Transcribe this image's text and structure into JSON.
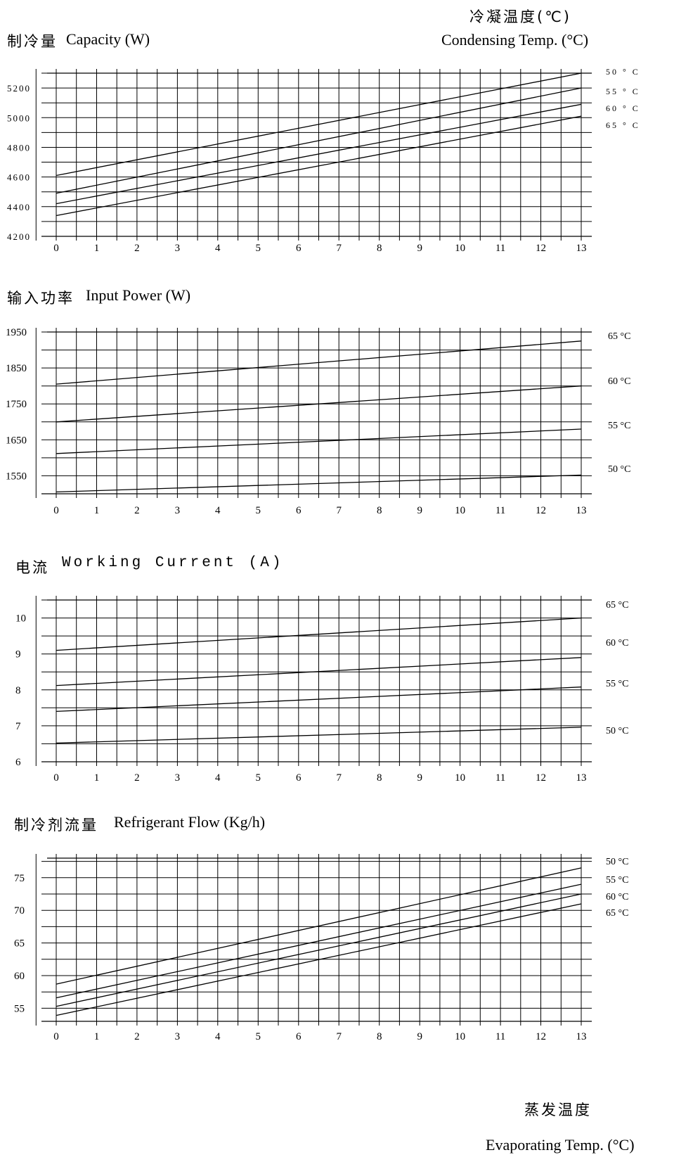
{
  "header": {
    "condensing_cn": "冷凝温度(℃)",
    "condensing_en": "Condensing Temp. (°C)"
  },
  "footer": {
    "evaporating_cn": "蒸发温度",
    "evaporating_en": "Evaporating Temp. (°C)"
  },
  "chart_data": [
    {
      "type": "line",
      "title_cn": "制冷量",
      "title_en": "Capacity  (W)",
      "x": [
        0,
        13
      ],
      "xlim": [
        0,
        13
      ],
      "ylim": [
        4200,
        5300
      ],
      "yticks": [
        4200,
        4400,
        4600,
        4800,
        5000,
        5200
      ],
      "grid": true,
      "series": [
        {
          "name": "50 ° C",
          "values": [
            4610,
            5300
          ]
        },
        {
          "name": "55 ° C",
          "values": [
            4490,
            5200
          ]
        },
        {
          "name": "60 ° C",
          "values": [
            4420,
            5090
          ]
        },
        {
          "name": "65 ° C",
          "values": [
            4340,
            5010
          ]
        }
      ]
    },
    {
      "type": "line",
      "title_cn": "输入功率",
      "title_en": "Input Power  (W)",
      "x": [
        0,
        13
      ],
      "xlim": [
        0,
        13
      ],
      "ylim": [
        1500,
        1950
      ],
      "yticks": [
        1550,
        1650,
        1750,
        1850,
        1950
      ],
      "grid": true,
      "series": [
        {
          "name": "65 °C",
          "values": [
            1805,
            1925
          ]
        },
        {
          "name": "60 °C",
          "values": [
            1700,
            1800
          ]
        },
        {
          "name": "55 °C",
          "values": [
            1612,
            1680
          ]
        },
        {
          "name": "50 °C",
          "values": [
            1505,
            1552
          ]
        }
      ]
    },
    {
      "type": "line",
      "title_cn": "电流",
      "title_en": "Working Current  (A)",
      "x": [
        0,
        13
      ],
      "xlim": [
        0,
        13
      ],
      "ylim": [
        6,
        10.5
      ],
      "yticks": [
        6,
        7,
        8,
        9,
        10
      ],
      "grid": true,
      "series": [
        {
          "name": "65 °C",
          "values": [
            9.1,
            10.0
          ]
        },
        {
          "name": "60 °C",
          "values": [
            8.12,
            8.9
          ]
        },
        {
          "name": "55 °C",
          "values": [
            7.4,
            8.08
          ]
        },
        {
          "name": "50 °C",
          "values": [
            6.52,
            6.96
          ]
        }
      ]
    },
    {
      "type": "line",
      "title_cn": "制冷剂流量",
      "title_en": "Refrigerant Flow  (Kg/h)",
      "x": [
        0,
        13
      ],
      "xlim": [
        0,
        13
      ],
      "ylim": [
        53,
        78
      ],
      "yticks": [
        55,
        60,
        65,
        70,
        75
      ],
      "grid": true,
      "series": [
        {
          "name": "50 °C",
          "values": [
            58.7,
            76.5
          ]
        },
        {
          "name": "55 °C",
          "values": [
            56.6,
            74.0
          ]
        },
        {
          "name": "60 °C",
          "values": [
            55.3,
            72.5
          ]
        },
        {
          "name": "65 °C",
          "values": [
            53.9,
            71.0
          ]
        }
      ]
    }
  ]
}
